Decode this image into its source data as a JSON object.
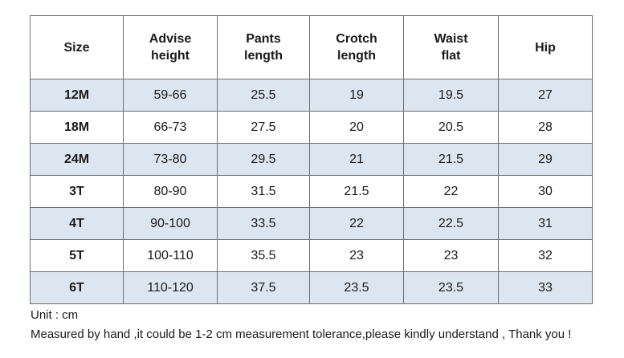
{
  "table": {
    "headers": [
      "Size",
      "Advise\nheight",
      "Pants\nlength",
      "Crotch\nlength",
      "Waist\nflat",
      "Hip"
    ],
    "rows": [
      {
        "size": "12M",
        "height": "59-66",
        "pants": "25.5",
        "crotch": "19",
        "waist": "19.5",
        "hip": "27"
      },
      {
        "size": "18M",
        "height": "66-73",
        "pants": "27.5",
        "crotch": "20",
        "waist": "20.5",
        "hip": "28"
      },
      {
        "size": "24M",
        "height": "73-80",
        "pants": "29.5",
        "crotch": "21",
        "waist": "21.5",
        "hip": "29"
      },
      {
        "size": "3T",
        "height": "80-90",
        "pants": "31.5",
        "crotch": "21.5",
        "waist": "22",
        "hip": "30"
      },
      {
        "size": "4T",
        "height": "90-100",
        "pants": "33.5",
        "crotch": "22",
        "waist": "22.5",
        "hip": "31"
      },
      {
        "size": "5T",
        "height": "100-110",
        "pants": "35.5",
        "crotch": "23",
        "waist": "23",
        "hip": "32"
      },
      {
        "size": "6T",
        "height": "110-120",
        "pants": "37.5",
        "crotch": "23.5",
        "waist": "23.5",
        "hip": "33"
      }
    ]
  },
  "colors": {
    "shaded_row": "#dce6f1",
    "plain_row": "#ffffff",
    "border": "#6f6f6f"
  },
  "notes": {
    "unit": "Unit : cm",
    "tolerance": "Measured by hand ,it could be 1-2 cm measurement tolerance,please kindly understand , Thank you !"
  }
}
